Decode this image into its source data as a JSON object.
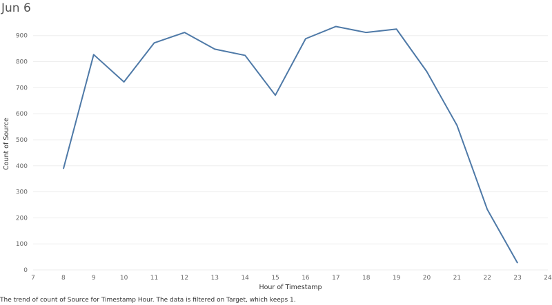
{
  "chart_data": {
    "type": "line",
    "title": "Jun 6",
    "xlabel": "Hour of Timestamp",
    "ylabel": "Count of Source",
    "caption": "The trend of count of Source for Timestamp Hour. The data is filtered on Target, which keeps 1.",
    "x": [
      8,
      9,
      10,
      11,
      12,
      13,
      14,
      15,
      16,
      17,
      18,
      19,
      20,
      21,
      22,
      23
    ],
    "series": [
      {
        "values": [
          388,
          827,
          722,
          872,
          912,
          848,
          824,
          671,
          888,
          935,
          912,
          925,
          762,
          555,
          232,
          26
        ]
      }
    ],
    "xlim": [
      7,
      24
    ],
    "ylim": [
      0,
      1000
    ],
    "xticks": [
      "7",
      "8",
      "9",
      "10",
      "11",
      "12",
      "13",
      "14",
      "15",
      "16",
      "17",
      "18",
      "19",
      "20",
      "21",
      "22",
      "23",
      "24"
    ],
    "yticks": [
      "0",
      "100",
      "200",
      "300",
      "400",
      "500",
      "600",
      "700",
      "800",
      "900"
    ],
    "line_color": "#4e79a7",
    "grid": true,
    "legend": "none"
  }
}
